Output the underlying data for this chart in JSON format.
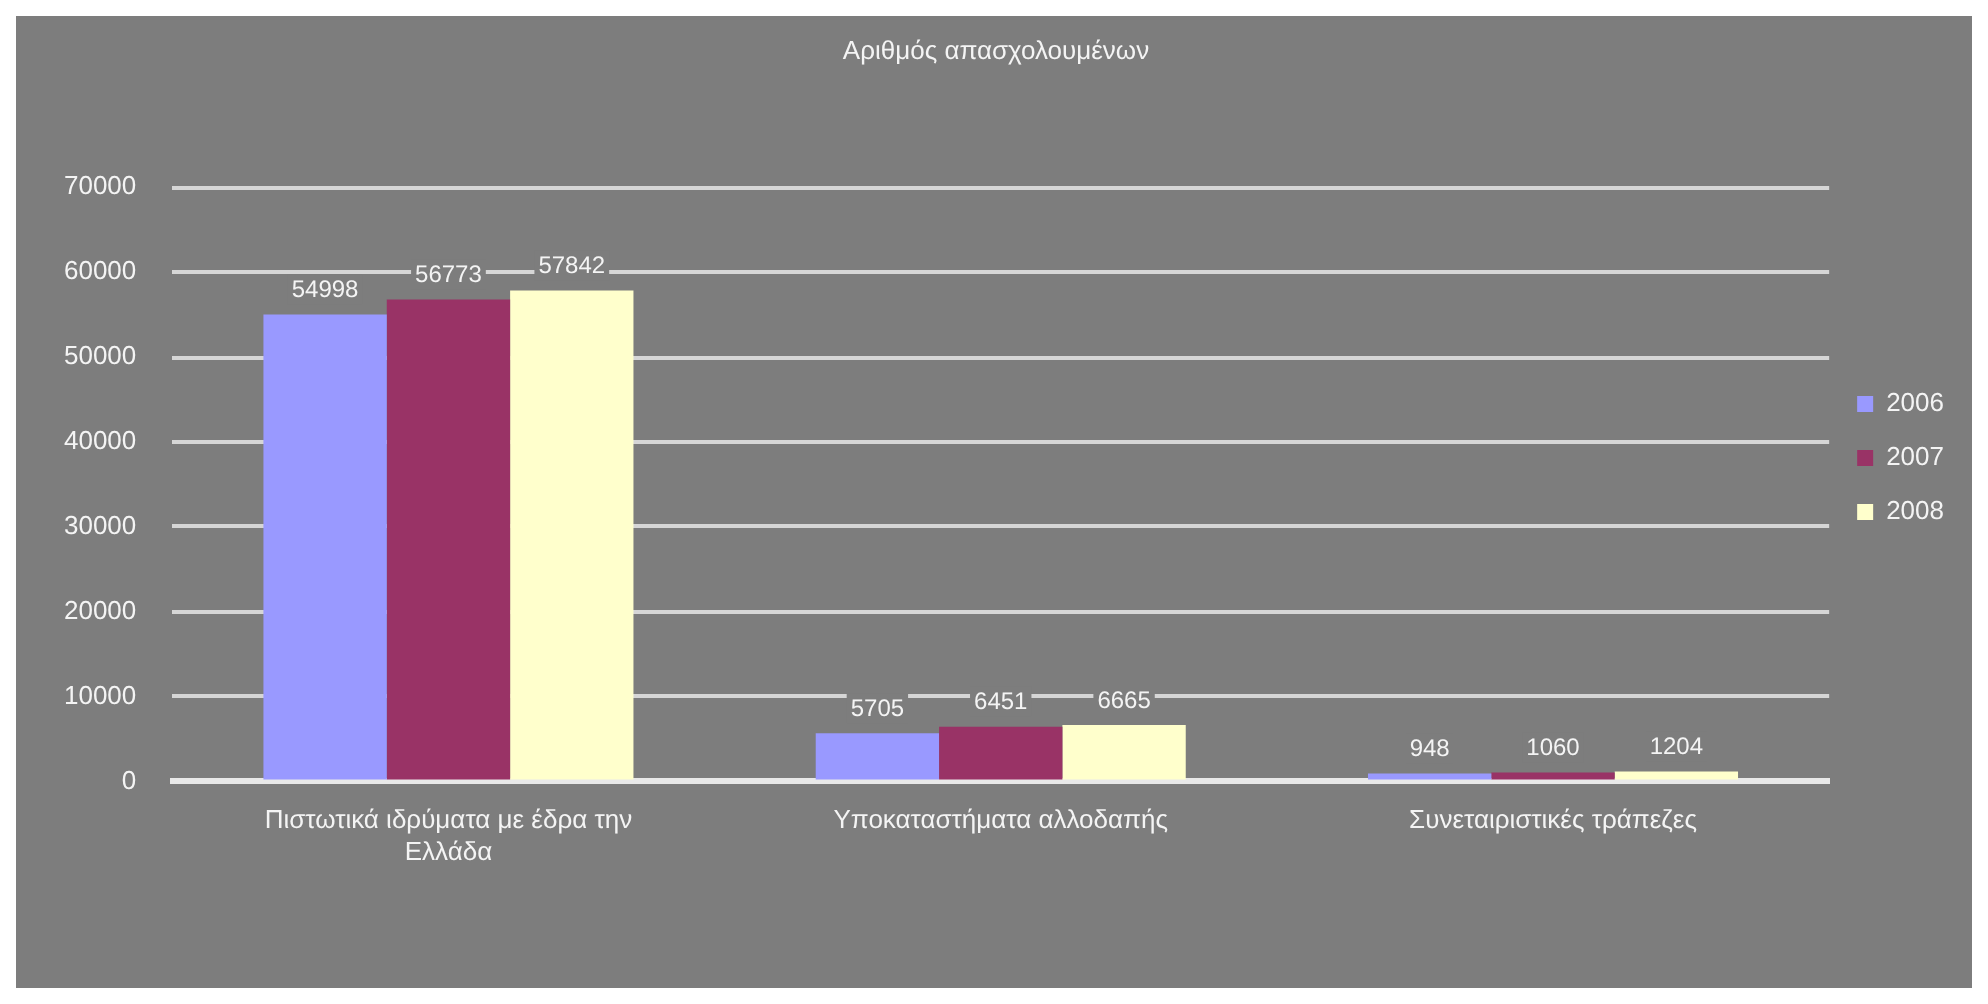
{
  "chart_data": {
    "type": "bar",
    "title": "Αριθμός απασχολουμένων",
    "categories": [
      "Πιστωτικά ιδρύματα με έδρα την Ελλάδα",
      "Υποκαταστήματα αλλοδαπής",
      "Συνεταιριστικές τράπεζες"
    ],
    "series": [
      {
        "name": "2006",
        "color": "#9999ff",
        "values": [
          54998,
          5705,
          948
        ]
      },
      {
        "name": "2007",
        "color": "#993366",
        "values": [
          56773,
          6451,
          1060
        ]
      },
      {
        "name": "2008",
        "color": "#ffffcc",
        "values": [
          57842,
          6665,
          1204
        ]
      }
    ],
    "ylim": [
      0,
      70000
    ],
    "yticks": [
      0,
      10000,
      20000,
      30000,
      40000,
      50000,
      60000,
      70000
    ],
    "grid": "y",
    "legend": "right",
    "data_labels": true
  }
}
